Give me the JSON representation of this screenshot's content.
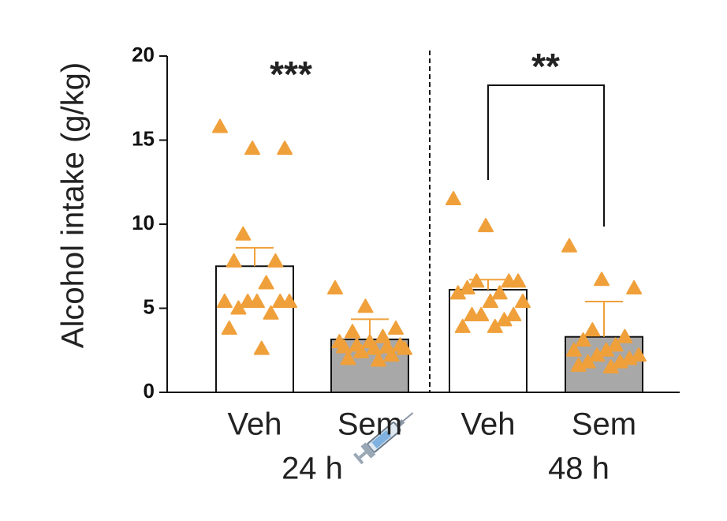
{
  "chart_data": {
    "type": "bar",
    "y_label": "Alcohol intake (g/kg)",
    "categories": [
      "Veh",
      "Sem",
      "Veh",
      "Sem"
    ],
    "groups": [
      "24 h",
      "48 h"
    ],
    "values": [
      7.5,
      3.15,
      6.1,
      3.3
    ],
    "errors": [
      1.1,
      1.2,
      0.6,
      2.1
    ],
    "bar_colors": [
      "#ffffff",
      "#a8a8a8",
      "#ffffff",
      "#a8a8a8"
    ],
    "point_color": "#f0a03a",
    "points": [
      [
        15.8,
        14.5,
        14.5,
        9.4,
        7.8,
        7.8,
        6.5,
        5.4,
        5.4,
        5.4,
        5.4,
        5.4,
        5.0,
        4.7,
        3.8,
        2.6
      ],
      [
        6.2,
        5.1,
        3.8,
        3.6,
        3.3,
        3.0,
        3.0,
        2.8,
        2.8,
        2.7,
        2.7,
        2.6,
        2.6,
        2.4,
        2.2,
        2.0,
        1.9
      ],
      [
        11.5,
        9.9,
        6.6,
        6.6,
        6.6,
        6.2,
        5.9,
        5.9,
        5.4,
        5.4,
        4.6,
        4.6,
        4.6,
        4.3,
        3.9,
        3.9
      ],
      [
        8.7,
        6.7,
        6.2,
        3.7,
        3.3,
        3.1,
        2.8,
        2.5,
        2.5,
        2.2,
        2.2,
        2.0,
        1.8,
        1.8,
        1.6,
        1.5
      ]
    ],
    "significance": [
      "***",
      "**"
    ],
    "ylim": [
      0,
      20
    ],
    "yticks": [
      0,
      5,
      10,
      15,
      20
    ]
  }
}
